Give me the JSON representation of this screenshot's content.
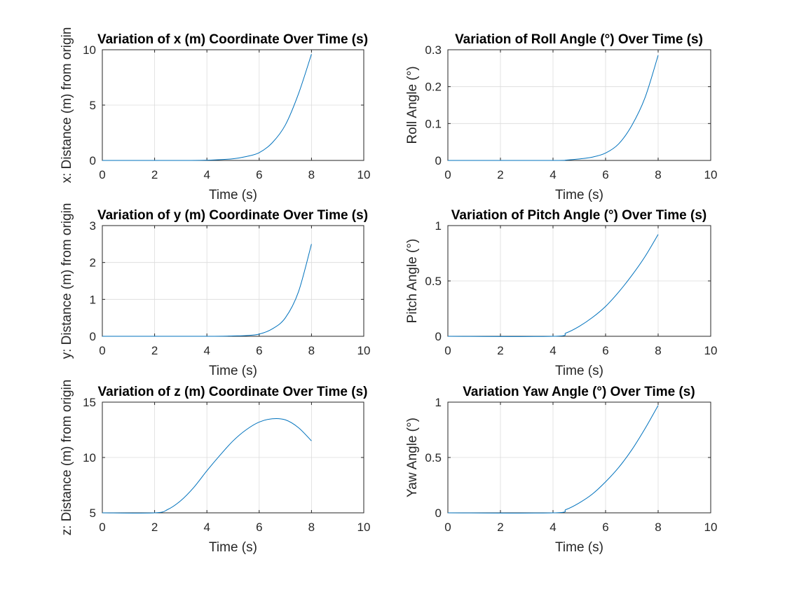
{
  "figure": {
    "background": "#ffffff"
  },
  "style": {
    "line_color": "#0072BD",
    "grid_color": "#dcdcdc",
    "axis_color": "#262626"
  },
  "chart_data": [
    {
      "type": "line",
      "title": "Variation of x (m) Coordinate Over Time (s)",
      "xlabel": "Time (s)",
      "ylabel": "x: Distance (m) from origin",
      "xlim": [
        0,
        10
      ],
      "ylim": [
        0,
        10
      ],
      "xticks": [
        0,
        2,
        4,
        6,
        8,
        10
      ],
      "yticks": [
        0,
        5,
        10
      ],
      "grid": true,
      "series": [
        {
          "x": [
            0,
            3,
            4,
            5,
            5.5,
            6,
            6.5,
            7,
            7.5,
            8
          ],
          "y": [
            0,
            0,
            0.02,
            0.15,
            0.35,
            0.7,
            1.6,
            3.2,
            6.0,
            9.6
          ]
        }
      ]
    },
    {
      "type": "line",
      "title": "Variation of Roll Angle (°) Over Time (s)",
      "xlabel": "Time (s)",
      "ylabel": "Roll Angle (°)",
      "xlim": [
        0,
        10
      ],
      "ylim": [
        0,
        0.3
      ],
      "xticks": [
        0,
        2,
        4,
        6,
        8,
        10
      ],
      "yticks": [
        0,
        0.1,
        0.2,
        0.3
      ],
      "grid": true,
      "series": [
        {
          "x": [
            0,
            4,
            4.5,
            5,
            5.5,
            6,
            6.5,
            7,
            7.5,
            8
          ],
          "y": [
            0,
            0,
            0.001,
            0.004,
            0.009,
            0.02,
            0.045,
            0.095,
            0.17,
            0.285
          ]
        }
      ]
    },
    {
      "type": "line",
      "title": "Variation of y (m) Coordinate Over Time (s)",
      "xlabel": "Time (s)",
      "ylabel": "y: Distance (m) from origin",
      "xlim": [
        0,
        10
      ],
      "ylim": [
        0,
        3
      ],
      "xticks": [
        0,
        2,
        4,
        6,
        8,
        10
      ],
      "yticks": [
        0,
        1,
        2,
        3
      ],
      "grid": true,
      "series": [
        {
          "x": [
            0,
            4,
            5,
            5.5,
            6,
            6.5,
            7,
            7.5,
            8
          ],
          "y": [
            0,
            0,
            0.01,
            0.02,
            0.06,
            0.2,
            0.5,
            1.2,
            2.5
          ]
        }
      ]
    },
    {
      "type": "line",
      "title": "Variation of Pitch Angle (°) Over Time (s)",
      "xlabel": "Time (s)",
      "ylabel": "Pitch Angle (°)",
      "xlim": [
        0,
        10
      ],
      "ylim": [
        0,
        1
      ],
      "xticks": [
        0,
        2,
        4,
        6,
        8,
        10
      ],
      "yticks": [
        0,
        0.5,
        1
      ],
      "grid": true,
      "series": [
        {
          "x": [
            0,
            4,
            4.5,
            5,
            5.5,
            6,
            6.5,
            7,
            7.5,
            8
          ],
          "y": [
            0,
            0,
            0.03,
            0.09,
            0.17,
            0.27,
            0.4,
            0.55,
            0.72,
            0.92
          ]
        }
      ]
    },
    {
      "type": "line",
      "title": "Variation of z (m) Coordinate Over Time (s)",
      "xlabel": "Time (s)",
      "ylabel": "z: Distance (m) from origin",
      "xlim": [
        0,
        10
      ],
      "ylim": [
        5,
        15
      ],
      "xticks": [
        0,
        2,
        4,
        6,
        8,
        10
      ],
      "yticks": [
        5,
        10,
        15
      ],
      "grid": true,
      "series": [
        {
          "x": [
            0,
            2,
            2.5,
            3,
            3.5,
            4,
            4.5,
            5,
            5.5,
            6,
            6.5,
            7,
            7.5,
            8
          ],
          "y": [
            5,
            5,
            5.3,
            6.1,
            7.3,
            8.8,
            10.2,
            11.5,
            12.5,
            13.2,
            13.5,
            13.4,
            12.7,
            11.5
          ]
        }
      ]
    },
    {
      "type": "line",
      "title": "Variation Yaw Angle (°) Over Time (s)",
      "xlabel": "Time (s)",
      "ylabel": "Yaw Angle (°)",
      "xlim": [
        0,
        10
      ],
      "ylim": [
        0,
        1
      ],
      "xticks": [
        0,
        2,
        4,
        6,
        8,
        10
      ],
      "yticks": [
        0,
        0.5,
        1
      ],
      "grid": true,
      "series": [
        {
          "x": [
            0,
            4,
            4.5,
            5,
            5.5,
            6,
            6.5,
            7,
            7.5,
            8
          ],
          "y": [
            0,
            0,
            0.03,
            0.09,
            0.17,
            0.28,
            0.41,
            0.57,
            0.76,
            0.97
          ]
        }
      ]
    }
  ]
}
